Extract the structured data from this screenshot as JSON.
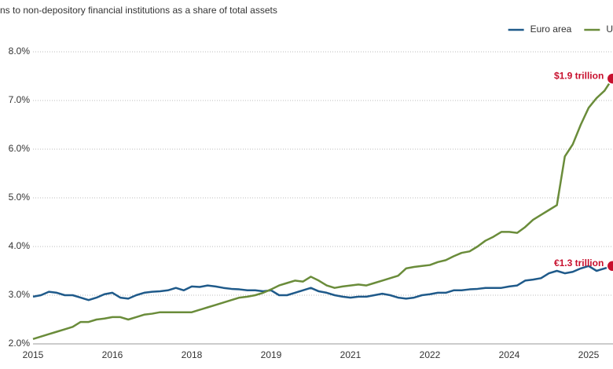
{
  "chart_data": {
    "type": "line",
    "title": "ns to non-depository financial institutions as a share of total assets",
    "categories": [
      "2015",
      null,
      null,
      null,
      null,
      null,
      null,
      null,
      null,
      null,
      "2016",
      null,
      null,
      null,
      null,
      null,
      null,
      null,
      null,
      null,
      "2018",
      null,
      null,
      null,
      null,
      null,
      null,
      null,
      null,
      null,
      "2019",
      null,
      null,
      null,
      null,
      null,
      null,
      null,
      null,
      null,
      "2021",
      null,
      null,
      null,
      null,
      null,
      null,
      null,
      null,
      null,
      "2022",
      null,
      null,
      null,
      null,
      null,
      null,
      null,
      null,
      null,
      "2024",
      null,
      null,
      null,
      null,
      null,
      null,
      null,
      null,
      null,
      "2025",
      null,
      null,
      null
    ],
    "series": [
      {
        "name": "Euro area",
        "color": "#1f5a8a",
        "values": [
          2.97,
          3.0,
          3.07,
          3.05,
          3.0,
          3.0,
          2.95,
          2.9,
          2.95,
          3.02,
          3.05,
          2.95,
          2.93,
          3.0,
          3.05,
          3.07,
          3.08,
          3.1,
          3.15,
          3.1,
          3.18,
          3.17,
          3.2,
          3.18,
          3.15,
          3.13,
          3.12,
          3.1,
          3.1,
          3.08,
          3.1,
          3.0,
          3.0,
          3.05,
          3.1,
          3.15,
          3.08,
          3.05,
          3.0,
          2.97,
          2.95,
          2.97,
          2.97,
          3.0,
          3.03,
          3.0,
          2.95,
          2.93,
          2.95,
          3.0,
          3.02,
          3.05,
          3.05,
          3.1,
          3.1,
          3.12,
          3.13,
          3.15,
          3.15,
          3.15,
          3.18,
          3.2,
          3.3,
          3.32,
          3.35,
          3.45,
          3.5,
          3.45,
          3.48,
          3.55,
          3.6,
          3.5,
          3.55,
          3.6
        ]
      },
      {
        "name": "U",
        "color": "#6a8c3a",
        "values": [
          2.1,
          2.15,
          2.2,
          2.25,
          2.3,
          2.35,
          2.45,
          2.45,
          2.5,
          2.52,
          2.55,
          2.55,
          2.5,
          2.55,
          2.6,
          2.62,
          2.65,
          2.65,
          2.65,
          2.65,
          2.65,
          2.7,
          2.75,
          2.8,
          2.85,
          2.9,
          2.95,
          2.97,
          3.0,
          3.05,
          3.12,
          3.2,
          3.25,
          3.3,
          3.28,
          3.38,
          3.3,
          3.2,
          3.15,
          3.18,
          3.2,
          3.22,
          3.2,
          3.25,
          3.3,
          3.35,
          3.4,
          3.55,
          3.58,
          3.6,
          3.62,
          3.68,
          3.72,
          3.8,
          3.87,
          3.9,
          4.0,
          4.12,
          4.2,
          4.3,
          4.3,
          4.28,
          4.4,
          4.55,
          4.65,
          4.75,
          4.85,
          5.85,
          6.1,
          6.5,
          6.85,
          7.05,
          7.2,
          7.45
        ]
      }
    ],
    "annotations": [
      {
        "text": "$1.9 trillion",
        "series": 1,
        "color": "#c8102e"
      },
      {
        "text": "€1.3 trillion",
        "series": 0,
        "color": "#c8102e"
      }
    ],
    "ylim": [
      2,
      8
    ],
    "yticks": [
      {
        "value": 2,
        "label": "2.0%"
      },
      {
        "value": 3,
        "label": "3.0%"
      },
      {
        "value": 4,
        "label": "4.0%"
      },
      {
        "value": 5,
        "label": "5.0%"
      },
      {
        "value": 6,
        "label": "6.0%"
      },
      {
        "value": 7,
        "label": "7.0%"
      },
      {
        "value": 8,
        "label": "8.0%"
      }
    ],
    "grid": true,
    "legend": "top-right"
  }
}
